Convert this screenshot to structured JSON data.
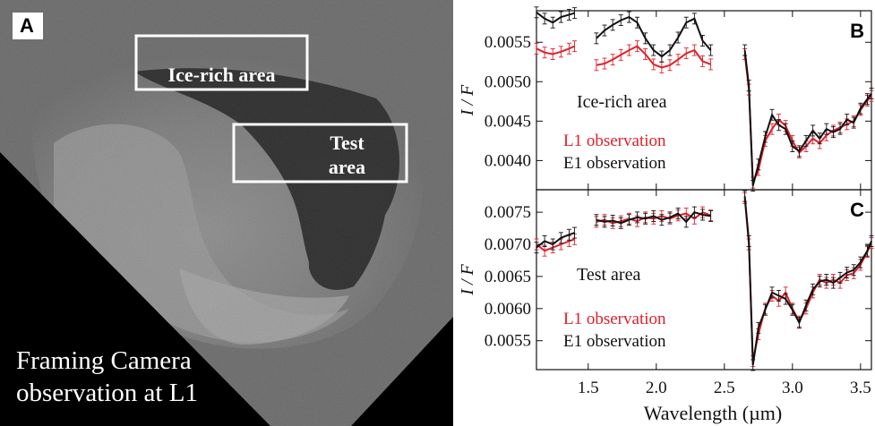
{
  "panel_a": {
    "letter": "A",
    "box_ice_label": "Ice-rich area",
    "box_test_label_1": "Test",
    "box_test_label_2": "area",
    "caption_line_1": "Framing Camera",
    "caption_line_2": "observation at L1"
  },
  "colors": {
    "l1": "#e0202a",
    "e1": "#111111"
  },
  "chart_data": [
    {
      "type": "line",
      "panel_letter": "B",
      "area_label": "Ice-rich area",
      "ylabel": "I / F",
      "xlabel": "",
      "xlim": [
        1.12,
        3.58
      ],
      "ylim": [
        0.00363,
        0.0059
      ],
      "xticks": [
        1.5,
        2.0,
        2.5,
        3.0,
        3.5
      ],
      "yticks": [
        0.004,
        0.0045,
        0.005,
        0.0055
      ],
      "ytick_labels": [
        "0.0040",
        "0.0045",
        "0.0050",
        "0.0055"
      ],
      "series": [
        {
          "name": "L1 observation",
          "color": "#e0202a",
          "segments": [
            {
              "x": [
                1.12,
                1.18,
                1.24,
                1.3,
                1.36,
                1.4
              ],
              "y": [
                0.00542,
                0.00537,
                0.00535,
                0.00538,
                0.00542,
                0.00545
              ]
            },
            {
              "x": [
                1.56,
                1.62,
                1.68,
                1.74,
                1.8,
                1.86,
                1.92,
                1.98,
                2.04,
                2.1,
                2.16,
                2.22,
                2.28,
                2.34,
                2.4
              ],
              "y": [
                0.00521,
                0.00523,
                0.00528,
                0.00534,
                0.0054,
                0.00545,
                0.00535,
                0.00522,
                0.00518,
                0.00521,
                0.00528,
                0.00536,
                0.0054,
                0.00526,
                0.00522
              ]
            },
            {
              "x": [
                2.65,
                2.68,
                2.71,
                2.75,
                2.8,
                2.85,
                2.9,
                2.95,
                3.0,
                3.05,
                3.1,
                3.15,
                3.2,
                3.25,
                3.3,
                3.35,
                3.4,
                3.45,
                3.5,
                3.55,
                3.58
              ],
              "y": [
                0.00535,
                0.0049,
                0.00372,
                0.00388,
                0.00425,
                0.0044,
                0.00452,
                0.00444,
                0.00425,
                0.0041,
                0.00418,
                0.00428,
                0.00422,
                0.00432,
                0.00438,
                0.00442,
                0.00446,
                0.0045,
                0.00464,
                0.00476,
                0.00482
              ]
            }
          ]
        },
        {
          "name": "E1 observation",
          "color": "#111111",
          "segments": [
            {
              "x": [
                1.12,
                1.18,
                1.24,
                1.3,
                1.36,
                1.4
              ],
              "y": [
                0.00588,
                0.0058,
                0.00575,
                0.00582,
                0.00585,
                0.00587
              ]
            },
            {
              "x": [
                1.56,
                1.62,
                1.68,
                1.74,
                1.8,
                1.86,
                1.92,
                1.98,
                2.04,
                2.1,
                2.16,
                2.22,
                2.28,
                2.34,
                2.4
              ],
              "y": [
                0.00555,
                0.00565,
                0.00572,
                0.00578,
                0.00582,
                0.00575,
                0.00555,
                0.0054,
                0.00532,
                0.0054,
                0.00556,
                0.00575,
                0.0058,
                0.00552,
                0.0054
              ]
            },
            {
              "x": [
                2.65,
                2.68,
                2.71,
                2.75,
                2.8,
                2.85,
                2.9,
                2.95,
                3.0,
                3.05,
                3.1,
                3.15,
                3.2,
                3.25,
                3.3,
                3.35,
                3.4,
                3.45,
                3.5,
                3.55,
                3.58
              ],
              "y": [
                0.0054,
                0.00495,
                0.00368,
                0.00395,
                0.0043,
                0.00458,
                0.00445,
                0.0044,
                0.00418,
                0.00412,
                0.00425,
                0.00438,
                0.00428,
                0.0044,
                0.00436,
                0.0044,
                0.00452,
                0.00448,
                0.00466,
                0.00478,
                0.00485
              ]
            }
          ]
        }
      ]
    },
    {
      "type": "line",
      "panel_letter": "C",
      "area_label": "Test area",
      "ylabel": "I / F",
      "xlabel": "Wavelength (µm)",
      "xlim": [
        1.12,
        3.58
      ],
      "ylim": [
        0.00505,
        0.00785
      ],
      "xticks": [
        1.5,
        2.0,
        2.5,
        3.0,
        3.5
      ],
      "xtick_labels": [
        "1.5",
        "2.0",
        "2.5",
        "3.0",
        "3.5"
      ],
      "yticks": [
        0.0055,
        0.006,
        0.0065,
        0.007,
        0.0075
      ],
      "ytick_labels": [
        "0.0055",
        "0.0060",
        "0.0065",
        "0.0070",
        "0.0075"
      ],
      "series": [
        {
          "name": "L1 observation",
          "color": "#e0202a",
          "segments": [
            {
              "x": [
                1.12,
                1.18,
                1.24,
                1.3,
                1.36,
                1.4
              ],
              "y": [
                0.007,
                0.0069,
                0.00695,
                0.007,
                0.00705,
                0.00708
              ]
            },
            {
              "x": [
                1.56,
                1.62,
                1.68,
                1.74,
                1.8,
                1.86,
                1.92,
                1.98,
                2.04,
                2.1,
                2.16,
                2.22,
                2.28,
                2.34,
                2.4
              ],
              "y": [
                0.00735,
                0.00738,
                0.00733,
                0.00736,
                0.0074,
                0.00736,
                0.00742,
                0.0074,
                0.00744,
                0.0074,
                0.00745,
                0.00748,
                0.0074,
                0.0075,
                0.00745
              ]
            },
            {
              "x": [
                2.65,
                2.68,
                2.71,
                2.75,
                2.8,
                2.85,
                2.9,
                2.95,
                3.0,
                3.05,
                3.1,
                3.15,
                3.2,
                3.25,
                3.3,
                3.35,
                3.4,
                3.45,
                3.5,
                3.55,
                3.58
              ],
              "y": [
                0.00772,
                0.007,
                0.00518,
                0.0056,
                0.006,
                0.0062,
                0.00612,
                0.00625,
                0.006,
                0.0058,
                0.006,
                0.00625,
                0.00645,
                0.0064,
                0.00645,
                0.0064,
                0.00652,
                0.00655,
                0.00668,
                0.00688,
                0.00702
              ]
            }
          ]
        },
        {
          "name": "E1 observation",
          "color": "#111111",
          "segments": [
            {
              "x": [
                1.12,
                1.18,
                1.24,
                1.3,
                1.36,
                1.4
              ],
              "y": [
                0.00695,
                0.00705,
                0.007,
                0.0071,
                0.00715,
                0.00718
              ]
            },
            {
              "x": [
                1.56,
                1.62,
                1.68,
                1.74,
                1.8,
                1.86,
                1.92,
                1.98,
                2.04,
                2.1,
                2.16,
                2.22,
                2.28,
                2.34,
                2.4
              ],
              "y": [
                0.00738,
                0.00735,
                0.00737,
                0.00733,
                0.00738,
                0.00742,
                0.0074,
                0.00744,
                0.00738,
                0.00742,
                0.00748,
                0.00735,
                0.0075,
                0.00746,
                0.00744
              ]
            },
            {
              "x": [
                2.65,
                2.68,
                2.71,
                2.75,
                2.8,
                2.85,
                2.9,
                2.95,
                3.0,
                3.05,
                3.1,
                3.15,
                3.2,
                3.25,
                3.3,
                3.35,
                3.4,
                3.45,
                3.5,
                3.55,
                3.58
              ],
              "y": [
                0.00775,
                0.00705,
                0.00512,
                0.0057,
                0.00598,
                0.00625,
                0.0062,
                0.00615,
                0.00598,
                0.00578,
                0.00605,
                0.0063,
                0.00642,
                0.00645,
                0.0064,
                0.00648,
                0.00656,
                0.0066,
                0.00672,
                0.0069,
                0.00705
              ]
            }
          ]
        }
      ]
    }
  ]
}
